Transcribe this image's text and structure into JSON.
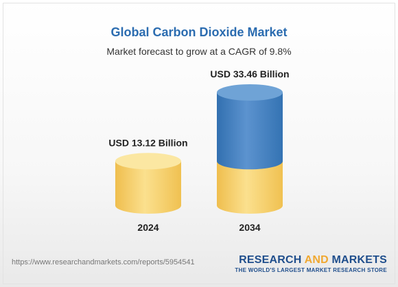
{
  "chart_data": {
    "type": "bar",
    "title": "Global Carbon Dioxide Market",
    "subtitle": "Market forecast to grow at a CAGR of 9.8%",
    "categories": [
      "2024",
      "2034"
    ],
    "values": [
      13.12,
      33.46
    ],
    "value_labels": [
      "USD 13.12 Billion",
      "USD 33.46 Billion"
    ],
    "unit": "USD Billion",
    "grid": false,
    "colors": {
      "base_fill": "#f6d377",
      "base_top": "#fbe7a2",
      "growth_fill": "#3f7fc0",
      "growth_top": "#6fa3d6"
    }
  },
  "footer": {
    "url": "https://www.researchandmarkets.com/reports/5954541",
    "brand_part1": "RESEARCH ",
    "brand_part2": "AND",
    "brand_part3": " MARKETS",
    "tagline": "THE WORLD'S LARGEST MARKET RESEARCH STORE"
  }
}
